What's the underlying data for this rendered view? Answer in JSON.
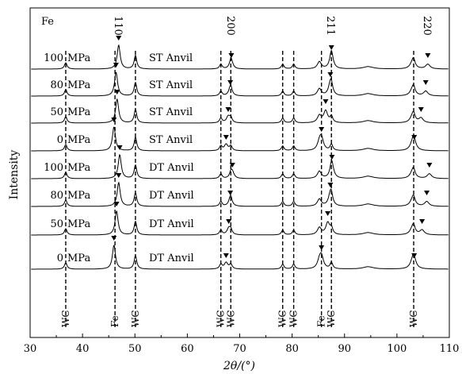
{
  "chart_data": {
    "type": "line",
    "corner_label": "Fe",
    "xlabel": "2θ/(°)",
    "ylabel": "Intensity",
    "xlim": [
      30,
      110
    ],
    "x_ticks": [
      30,
      40,
      50,
      60,
      70,
      80,
      90,
      100,
      110
    ],
    "grid": false,
    "legend": "none",
    "series": [
      {
        "pressure": "100",
        "unit": "MPa",
        "anvil": "ST Anvil"
      },
      {
        "pressure": "80",
        "unit": "MPa",
        "anvil": "ST Anvil"
      },
      {
        "pressure": "50",
        "unit": "MPa",
        "anvil": "ST Anvil"
      },
      {
        "pressure": "0",
        "unit": "MPa",
        "anvil": "ST Anvil"
      },
      {
        "pressure": "100",
        "unit": "MPa",
        "anvil": "DT Anvil"
      },
      {
        "pressure": "80",
        "unit": "MPa",
        "anvil": "DT Anvil"
      },
      {
        "pressure": "50",
        "unit": "MPa",
        "anvil": "DT Anvil"
      },
      {
        "pressure": "0",
        "unit": "MPa",
        "anvil": "DT Anvil"
      }
    ],
    "fe_peaks": [
      {
        "label": "110",
        "positions": [
          46.9,
          46.4,
          46.6,
          46.0,
          47.1,
          46.9,
          46.5,
          46.0
        ]
      },
      {
        "label": "200",
        "positions": [
          68.4,
          68.2,
          67.8,
          67.4,
          68.6,
          68.2,
          67.9,
          67.4
        ]
      },
      {
        "label": "211",
        "positions": [
          87.5,
          87.3,
          86.4,
          85.6,
          87.6,
          87.3,
          86.8,
          85.6
        ]
      },
      {
        "label": "220",
        "positions": [
          105.9,
          105.5,
          104.6,
          103.3,
          106.2,
          105.7,
          104.8,
          103.3
        ]
      }
    ],
    "reference_lines": [
      {
        "x": 36.8,
        "label": "WC"
      },
      {
        "x": 46.2,
        "label": "Fe"
      },
      {
        "x": 50.1,
        "label": "WC"
      },
      {
        "x": 66.4,
        "label": "WC"
      },
      {
        "x": 68.3,
        "label": "WC"
      },
      {
        "x": 78.2,
        "label": "WC"
      },
      {
        "x": 80.3,
        "label": "WC"
      },
      {
        "x": 85.6,
        "label": "Fe"
      },
      {
        "x": 87.5,
        "label": "WC"
      },
      {
        "x": 103.2,
        "label": "WC"
      }
    ]
  }
}
